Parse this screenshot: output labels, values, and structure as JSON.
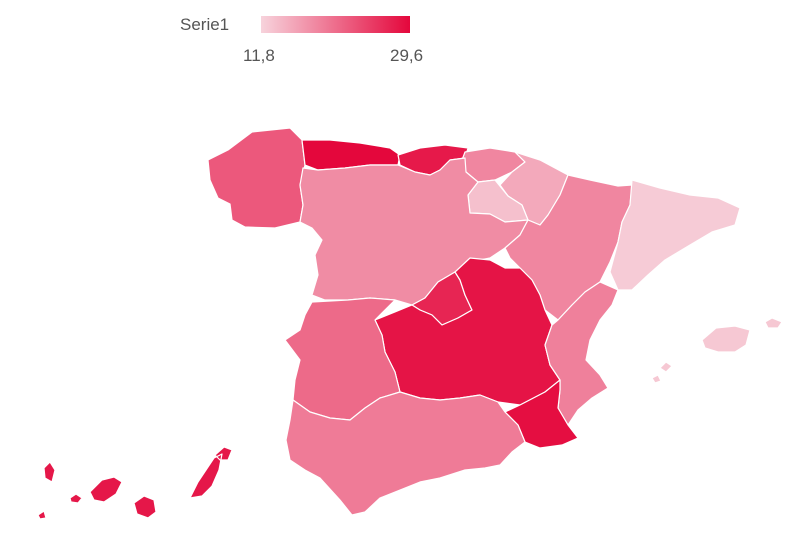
{
  "legend": {
    "title": "Serie1",
    "min_label": "11,8",
    "max_label": "29,6",
    "min": 11.8,
    "max": 29.6,
    "color_low": "#f7d3dc",
    "color_high": "#e4073c"
  },
  "map": {
    "regions": [
      {
        "name": "galicia",
        "value": 22.5
      },
      {
        "name": "asturias",
        "value": 29.6
      },
      {
        "name": "cantabria",
        "value": 28.0
      },
      {
        "name": "pais-vasco",
        "value": 18.5
      },
      {
        "name": "navarra",
        "value": 15.5
      },
      {
        "name": "la-rioja",
        "value": 13.5
      },
      {
        "name": "castilla-y-leon",
        "value": 18.0
      },
      {
        "name": "aragon",
        "value": 18.5
      },
      {
        "name": "cataluna",
        "value": 12.5
      },
      {
        "name": "madrid",
        "value": 27.0
      },
      {
        "name": "castilla-la-mancha",
        "value": 28.5
      },
      {
        "name": "extremadura",
        "value": 21.0
      },
      {
        "name": "comunitat-valenciana",
        "value": 19.0
      },
      {
        "name": "region-de-murcia",
        "value": 29.0
      },
      {
        "name": "andalucia",
        "value": 19.5
      },
      {
        "name": "illes-balears",
        "value": 12.8
      },
      {
        "name": "canarias",
        "value": 28.2
      }
    ]
  }
}
